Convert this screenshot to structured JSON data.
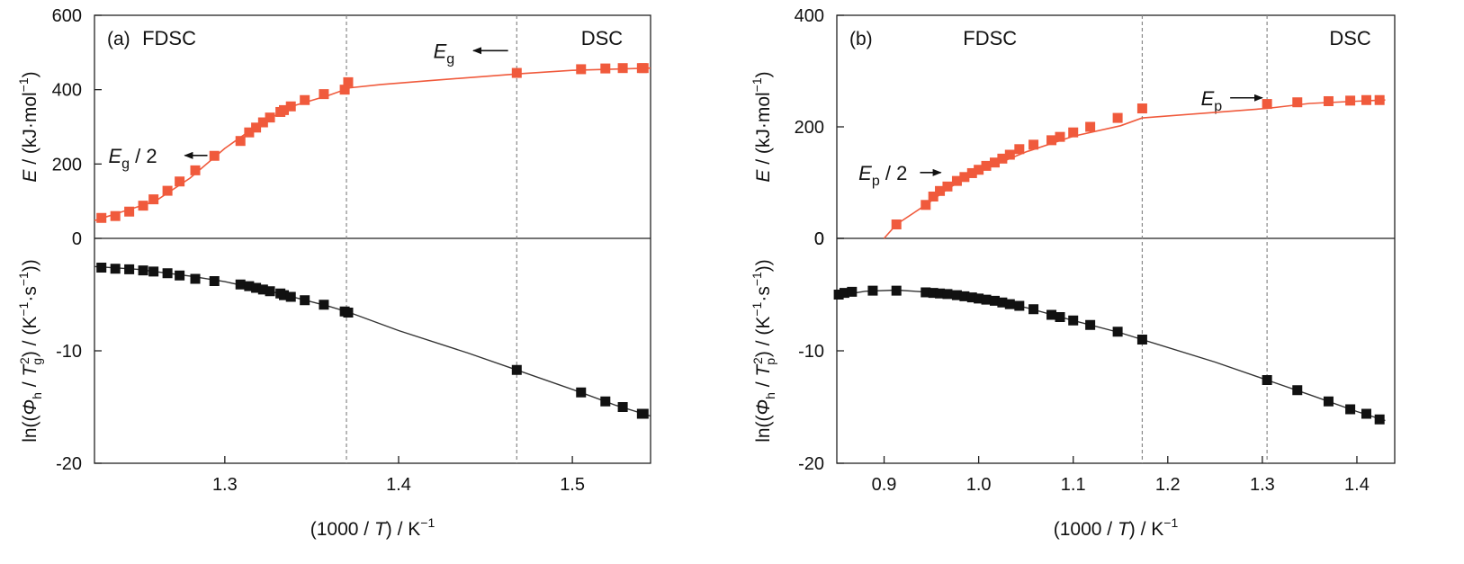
{
  "chart_data": [
    {
      "panel_label": "(a)",
      "type": "scatter",
      "xlabel_parts": [
        "(1000 / ",
        "T",
        ") / K",
        "−1"
      ],
      "xlim": [
        1.225,
        1.545
      ],
      "xticks": [
        1.3,
        1.4,
        1.5
      ],
      "xtick_labels": [
        "1.3",
        "1.4",
        "1.5"
      ],
      "top": {
        "ylabel_parts": [
          "E",
          " / (kJ·mol",
          "−1",
          ")"
        ],
        "ylim": [
          0,
          600
        ],
        "yticks": [
          0,
          200,
          400,
          600
        ],
        "ytick_labels": [
          "0",
          "200",
          "400",
          "600"
        ],
        "series": {
          "color": "#f05a3c",
          "x": [
            1.229,
            1.237,
            1.245,
            1.253,
            1.259,
            1.267,
            1.274,
            1.283,
            1.294,
            1.309,
            1.314,
            1.318,
            1.322,
            1.326,
            1.332,
            1.334,
            1.338,
            1.346,
            1.357,
            1.369,
            1.371,
            1.468,
            1.505,
            1.519,
            1.529,
            1.54,
            1.541
          ],
          "y": [
            55,
            60,
            72,
            88,
            105,
            128,
            153,
            183,
            222,
            262,
            285,
            298,
            312,
            325,
            340,
            345,
            355,
            372,
            388,
            400,
            420,
            445,
            455,
            457,
            458,
            458,
            458
          ]
        },
        "curve": {
          "x": [
            1.225,
            1.26,
            1.28,
            1.3,
            1.32,
            1.34,
            1.36,
            1.372,
            1.39,
            1.42,
            1.47,
            1.5,
            1.545
          ],
          "y": [
            48,
            100,
            162,
            242,
            308,
            357,
            385,
            405,
            414,
            425,
            443,
            452,
            458
          ]
        },
        "region_labels": [
          {
            "text": "FDSC",
            "x": 1.268,
            "y": 540
          },
          {
            "text": "DSC",
            "x": 1.517,
            "y": 540
          }
        ],
        "annotations": [
          {
            "text_main": "E",
            "text_sub": "g",
            "text_rest": " / 2",
            "label_x": 1.233,
            "label_y": 223,
            "arrow_from_x": 1.29,
            "arrow_to_x": 1.277
          },
          {
            "text_main": "E",
            "text_sub": "g",
            "text_rest": "",
            "label_x": 1.42,
            "label_y": 505,
            "arrow_from_x": 1.463,
            "arrow_to_x": 1.443
          }
        ]
      },
      "bottom": {
        "ylabel_parts": [
          "ln((",
          "Φ",
          "h",
          " / ",
          "T",
          "g",
          "2",
          ") / (K",
          "−1",
          "·s",
          "−1",
          "))"
        ],
        "ylim": [
          -20,
          0
        ],
        "yticks": [
          -20,
          -10
        ],
        "ytick_labels": [
          "-20",
          "-10"
        ],
        "series": {
          "color": "#111111",
          "x": [
            1.229,
            1.237,
            1.245,
            1.253,
            1.259,
            1.267,
            1.274,
            1.283,
            1.294,
            1.309,
            1.314,
            1.318,
            1.322,
            1.326,
            1.332,
            1.334,
            1.338,
            1.346,
            1.357,
            1.369,
            1.371,
            1.468,
            1.505,
            1.519,
            1.529,
            1.54,
            1.541
          ],
          "y": [
            -2.6,
            -2.7,
            -2.75,
            -2.85,
            -2.95,
            -3.1,
            -3.3,
            -3.6,
            -3.8,
            -4.1,
            -4.25,
            -4.4,
            -4.55,
            -4.7,
            -4.9,
            -5.05,
            -5.2,
            -5.5,
            -5.9,
            -6.5,
            -6.6,
            -11.7,
            -13.7,
            -14.5,
            -15.0,
            -15.6,
            -15.6
          ]
        },
        "curve": {
          "x": [
            1.225,
            1.25,
            1.28,
            1.3,
            1.33,
            1.36,
            1.371,
            1.4,
            1.44,
            1.468,
            1.505,
            1.525,
            1.545
          ],
          "y": [
            -2.5,
            -2.75,
            -3.35,
            -3.85,
            -4.85,
            -6.05,
            -6.55,
            -8.2,
            -10.2,
            -11.7,
            -13.7,
            -14.85,
            -15.8
          ]
        }
      },
      "vlines": [
        1.37,
        1.468
      ]
    },
    {
      "panel_label": "(b)",
      "type": "scatter",
      "xlabel_parts": [
        "(1000 / ",
        "T",
        ") / K",
        "−1"
      ],
      "xlim": [
        0.85,
        1.44
      ],
      "xticks": [
        0.9,
        1.0,
        1.1,
        1.2,
        1.3,
        1.4
      ],
      "xtick_labels": [
        "0.9",
        "1.0",
        "1.1",
        "1.2",
        "1.3",
        "1.4"
      ],
      "top": {
        "ylabel_parts": [
          "E",
          " / (kJ·mol",
          "−1",
          ")"
        ],
        "ylim": [
          0,
          400
        ],
        "yticks": [
          0,
          200,
          400
        ],
        "ytick_labels": [
          "0",
          "200",
          "400"
        ],
        "series": {
          "color": "#f05a3c",
          "x": [
            0.913,
            0.944,
            0.952,
            0.959,
            0.967,
            0.977,
            0.985,
            0.993,
            1.0,
            1.008,
            1.017,
            1.025,
            1.033,
            1.043,
            1.058,
            1.077,
            1.086,
            1.1,
            1.118,
            1.147,
            1.173,
            1.305,
            1.337,
            1.37,
            1.393,
            1.41,
            1.424
          ],
          "y": [
            25,
            60,
            75,
            85,
            93,
            103,
            110,
            117,
            123,
            130,
            136,
            143,
            150,
            160,
            168,
            176,
            182,
            190,
            200,
            216,
            233,
            241,
            244,
            246,
            247,
            248,
            248
          ]
        },
        "curve": {
          "x": [
            0.9,
            0.913,
            0.944,
            0.97,
            1.0,
            1.05,
            1.1,
            1.15,
            1.173,
            1.25,
            1.305,
            1.35,
            1.4,
            1.43
          ],
          "y": [
            0,
            25,
            60,
            92,
            120,
            155,
            183,
            202,
            216,
            226,
            233,
            242,
            246,
            248
          ]
        },
        "region_labels": [
          {
            "text": "FDSC",
            "x": 1.012,
            "y": 360
          },
          {
            "text": "DSC",
            "x": 1.393,
            "y": 360
          }
        ],
        "annotations": [
          {
            "text_main": "E",
            "text_sub": "p",
            "text_rest": " / 2",
            "label_x": 0.873,
            "label_y": 118,
            "arrow_from_x": 0.938,
            "arrow_to_x": 0.96
          },
          {
            "text_main": "E",
            "text_sub": "p",
            "text_rest": "",
            "label_x": 1.235,
            "label_y": 252,
            "arrow_from_x": 1.266,
            "arrow_to_x": 1.3
          }
        ]
      },
      "bottom": {
        "ylabel_parts": [
          "ln((",
          "Φ",
          "h",
          " / ",
          "T",
          "p",
          "2",
          ") / (K",
          "−1",
          "·s",
          "−1",
          "))"
        ],
        "ylim": [
          -20,
          0
        ],
        "yticks": [
          -20,
          -10,
          0
        ],
        "ytick_labels": [
          "-20",
          "-10",
          "0"
        ],
        "series": {
          "color": "#111111",
          "x": [
            0.852,
            0.858,
            0.866,
            0.888,
            0.913,
            0.944,
            0.952,
            0.959,
            0.967,
            0.977,
            0.985,
            0.993,
            1.0,
            1.008,
            1.017,
            1.025,
            1.033,
            1.043,
            1.058,
            1.077,
            1.086,
            1.1,
            1.118,
            1.147,
            1.173,
            1.305,
            1.337,
            1.37,
            1.393,
            1.41,
            1.424
          ],
          "y": [
            -5.0,
            -4.85,
            -4.75,
            -4.65,
            -4.65,
            -4.8,
            -4.85,
            -4.9,
            -4.95,
            -5.05,
            -5.15,
            -5.25,
            -5.35,
            -5.45,
            -5.55,
            -5.7,
            -5.85,
            -6.0,
            -6.3,
            -6.8,
            -7.0,
            -7.3,
            -7.7,
            -8.3,
            -9.0,
            -12.6,
            -13.5,
            -14.5,
            -15.2,
            -15.6,
            -16.1
          ]
        },
        "curve": {
          "x": [
            0.85,
            0.88,
            0.913,
            0.95,
            1.0,
            1.05,
            1.1,
            1.15,
            1.173,
            1.25,
            1.305,
            1.35,
            1.4,
            1.43
          ],
          "y": [
            -5.1,
            -4.7,
            -4.6,
            -4.8,
            -5.3,
            -6.15,
            -7.3,
            -8.4,
            -9.0,
            -11.0,
            -12.6,
            -13.9,
            -15.4,
            -16.2
          ]
        }
      },
      "vlines": [
        1.173,
        1.305
      ]
    }
  ]
}
